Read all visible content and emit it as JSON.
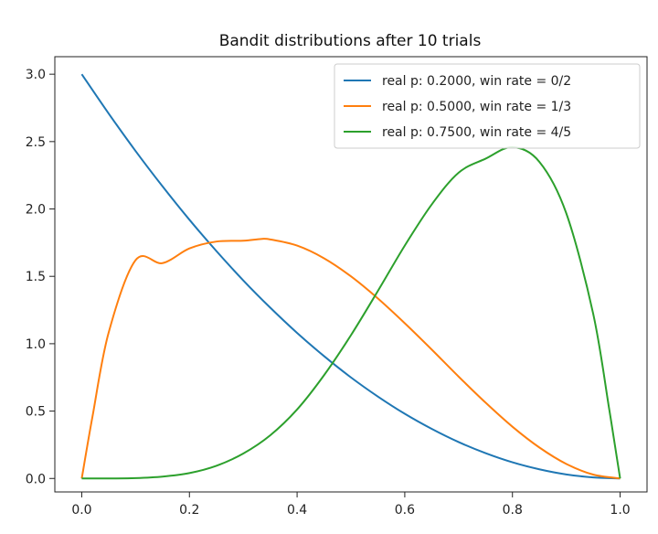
{
  "chart_data": {
    "type": "line",
    "title": "Bandit distributions after 10 trials",
    "xlabel": "",
    "ylabel": "",
    "xlim": [
      -0.05,
      1.05
    ],
    "ylim": [
      -0.1,
      3.13
    ],
    "xticks": [
      "0.0",
      "0.2",
      "0.4",
      "0.6",
      "0.8",
      "1.0"
    ],
    "yticks": [
      "0.0",
      "0.5",
      "1.0",
      "1.5",
      "2.0",
      "2.5",
      "3.0"
    ],
    "grid": false,
    "legend_position": "top-right",
    "series": [
      {
        "name": "real p: 0.2000, win rate = 0/2",
        "color": "#1f77b4",
        "x": [
          0,
          0.05,
          0.1,
          0.15,
          0.2,
          0.25,
          0.3,
          0.35,
          0.4,
          0.45,
          0.5,
          0.55,
          0.6,
          0.65,
          0.7,
          0.75,
          0.8,
          0.85,
          0.9,
          0.95,
          1.0
        ],
        "y": [
          3.0,
          2.708,
          2.43,
          2.168,
          1.92,
          1.688,
          1.47,
          1.268,
          1.08,
          0.908,
          0.75,
          0.608,
          0.48,
          0.368,
          0.27,
          0.188,
          0.12,
          0.068,
          0.03,
          0.008,
          0.0
        ]
      },
      {
        "name": "real p: 0.5000, win rate = 1/3",
        "color": "#ff7f0e",
        "x": [
          0,
          0.02,
          0.05,
          0.1,
          0.15,
          0.2,
          0.25,
          0.3,
          0.333,
          0.35,
          0.4,
          0.45,
          0.5,
          0.55,
          0.6,
          0.65,
          0.7,
          0.75,
          0.8,
          0.85,
          0.9,
          0.95,
          1.0
        ],
        "y": [
          0.0,
          0.461,
          1.083,
          1.62,
          1.598,
          1.707,
          1.758,
          1.764,
          1.777,
          1.774,
          1.728,
          1.634,
          1.5,
          1.336,
          1.152,
          0.957,
          0.756,
          0.563,
          0.384,
          0.23,
          0.108,
          0.029,
          0.0
        ]
      },
      {
        "name": "real p: 0.7500, win rate = 4/5",
        "color": "#2ca02c",
        "x": [
          0,
          0.05,
          0.1,
          0.15,
          0.2,
          0.25,
          0.3,
          0.35,
          0.4,
          0.45,
          0.5,
          0.55,
          0.6,
          0.65,
          0.7,
          0.75,
          0.8,
          0.85,
          0.9,
          0.95,
          0.98,
          1.0
        ],
        "y": [
          0.0,
          0.0,
          0.003,
          0.014,
          0.04,
          0.094,
          0.185,
          0.32,
          0.512,
          0.766,
          1.063,
          1.391,
          1.728,
          2.033,
          2.269,
          2.373,
          2.458,
          2.35,
          1.968,
          1.222,
          0.508,
          0.0
        ]
      }
    ]
  }
}
